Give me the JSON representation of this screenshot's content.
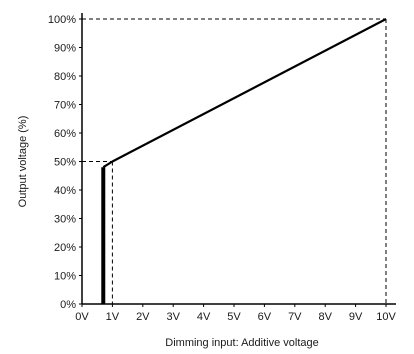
{
  "chart_data": {
    "type": "line",
    "xlabel": "Dimming input: Additive voltage",
    "ylabel": "Output voltage (%)",
    "xlim": [
      0,
      10
    ],
    "ylim": [
      0,
      100
    ],
    "x_ticks": [
      "0V",
      "1V",
      "2V",
      "3V",
      "4V",
      "5V",
      "6V",
      "7V",
      "8V",
      "9V",
      "10V"
    ],
    "y_ticks": [
      "0%",
      "10%",
      "20%",
      "30%",
      "40%",
      "50%",
      "60%",
      "70%",
      "80%",
      "90%",
      "100%"
    ],
    "x_tick_values": [
      0,
      1,
      2,
      3,
      4,
      5,
      6,
      7,
      8,
      9,
      10
    ],
    "y_tick_values": [
      0,
      10,
      20,
      30,
      40,
      50,
      60,
      70,
      80,
      90,
      100
    ],
    "grid": false,
    "line": {
      "color": "#000000",
      "points": [
        {
          "x": 0.7,
          "y": 48
        },
        {
          "x": 1,
          "y": 50
        },
        {
          "x": 10,
          "y": 100
        }
      ]
    },
    "cutoff_bar": {
      "x": 0.7,
      "y_from": 0,
      "y_to": 48
    },
    "reference_lines": [
      {
        "x": 1,
        "y": 50
      },
      {
        "x": 10,
        "y": 100
      }
    ]
  }
}
